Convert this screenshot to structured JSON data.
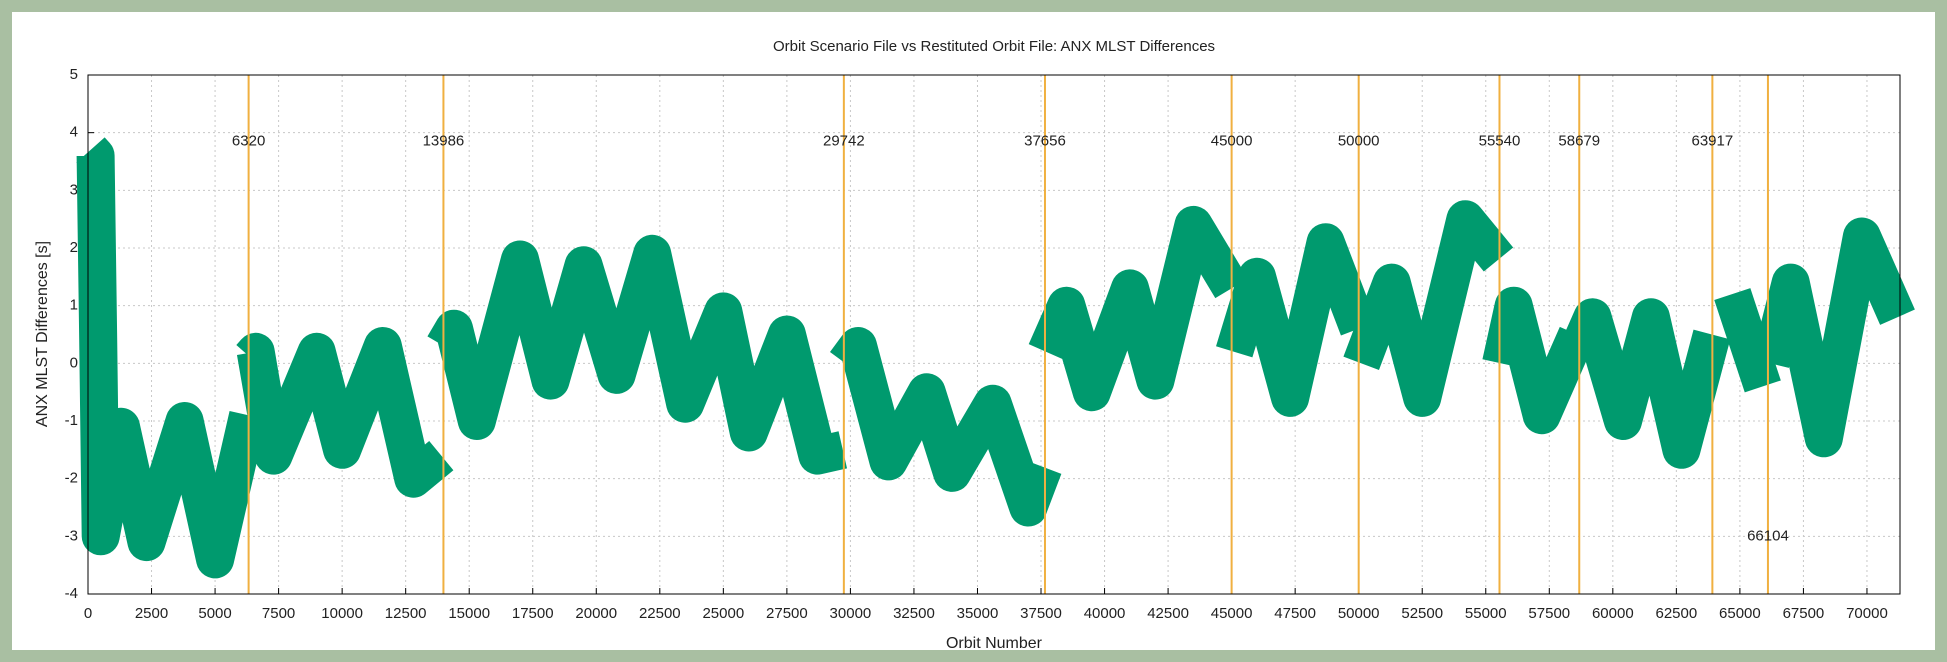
{
  "chart_data": {
    "type": "line",
    "title": "Orbit Scenario File vs Restituted Orbit File: ANX MLST Differences",
    "x_label": "Orbit Number",
    "y_label": "ANX MLST Differences [s]",
    "xlim": [
      0,
      71300
    ],
    "ylim": [
      -4,
      5
    ],
    "xticks": [
      0,
      2500,
      5000,
      7500,
      10000,
      12500,
      15000,
      17500,
      20000,
      22500,
      25000,
      27500,
      30000,
      32500,
      35000,
      37500,
      40000,
      42500,
      45000,
      47500,
      50000,
      52500,
      55000,
      57500,
      60000,
      62500,
      65000,
      67500,
      70000
    ],
    "yticks": [
      -4,
      -3,
      -2,
      -1,
      0,
      1,
      2,
      3,
      4,
      5
    ],
    "grid": true,
    "annotation_color": "#f0b040",
    "annotations": [
      {
        "x": 6320,
        "y": 3.85,
        "label": "6320"
      },
      {
        "x": 13986,
        "y": 3.85,
        "label": "13986"
      },
      {
        "x": 29742,
        "y": 3.85,
        "label": "29742"
      },
      {
        "x": 37656,
        "y": 3.85,
        "label": "37656"
      },
      {
        "x": 45000,
        "y": 3.85,
        "label": "45000"
      },
      {
        "x": 50000,
        "y": 3.85,
        "label": "50000"
      },
      {
        "x": 55540,
        "y": 3.85,
        "label": "55540"
      },
      {
        "x": 58679,
        "y": 3.85,
        "label": "58679"
      },
      {
        "x": 63917,
        "y": 3.85,
        "label": "63917"
      },
      {
        "x": 66104,
        "y": -3.0,
        "label": "66104"
      }
    ],
    "series": [
      {
        "color": "#009a6e",
        "x": [
          100,
          300,
          400,
          500,
          1300,
          2300,
          3800,
          5000,
          6300,
          6320,
          6400,
          6600,
          7300,
          9000,
          10000,
          11600,
          12800,
          13900,
          13986,
          14000,
          14400,
          15300,
          17000,
          18200,
          19500,
          20800,
          22200,
          23500,
          25000,
          26000,
          27500,
          28700,
          29700,
          29742,
          29800,
          30300,
          31500,
          33000,
          34000,
          35600,
          37000,
          37600,
          37656,
          37700,
          38500,
          39500,
          41000,
          42000,
          43500,
          45000,
          45000,
          45100,
          46000,
          47300,
          48700,
          50000,
          50000,
          50100,
          51300,
          52500,
          54200,
          55500,
          55540,
          55600,
          56100,
          57200,
          58600,
          58679,
          58700,
          59200,
          60400,
          61500,
          62700,
          63900,
          63917,
          64700,
          65900,
          66104,
          66200,
          67000,
          68300,
          69800,
          71200
        ],
        "values": [
          3.7,
          3.6,
          0.4,
          -3.0,
          -1.1,
          -3.1,
          -1.0,
          -3.4,
          -0.9,
          null,
          0.1,
          0.2,
          -1.6,
          0.2,
          -1.5,
          0.3,
          -2.0,
          -1.6,
          null,
          0.3,
          0.6,
          -1.0,
          1.8,
          -0.3,
          1.7,
          -0.2,
          1.9,
          -0.7,
          0.9,
          -1.2,
          0.5,
          -1.6,
          -1.5,
          null,
          0.0,
          0.3,
          -1.7,
          -0.5,
          -1.9,
          -0.7,
          -2.5,
          -1.8,
          null,
          0.2,
          1.0,
          -0.5,
          1.3,
          -0.3,
          2.4,
          1.3,
          null,
          0.2,
          1.5,
          -0.6,
          2.1,
          0.6,
          null,
          0.0,
          1.4,
          -0.6,
          2.5,
          1.8,
          null,
          0.0,
          1.0,
          -0.9,
          0.5,
          null,
          0.3,
          0.8,
          -1.0,
          0.8,
          -1.5,
          0.5,
          null,
          1.2,
          -0.4,
          null,
          0.0,
          1.4,
          -1.3,
          2.2,
          0.8
        ]
      }
    ]
  }
}
